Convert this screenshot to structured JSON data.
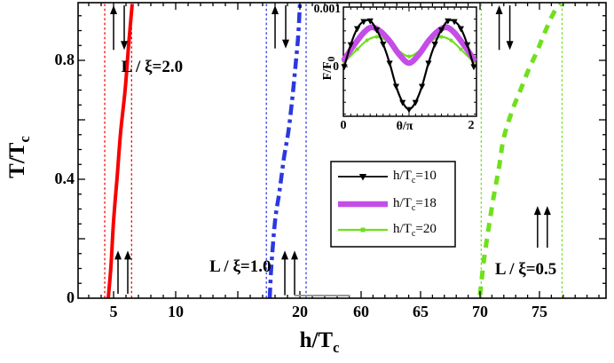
{
  "colors": {
    "red": "#f80000",
    "blue": "#2b38e0",
    "green": "#6fe01c",
    "magenta": "#c44de8",
    "black": "#000000",
    "break_gray": "#9a9a9a"
  },
  "legend": {
    "items": [
      {
        "pre": "h/T",
        "sub": "c",
        "post": "=10",
        "color": "black",
        "marker": "triangle-down"
      },
      {
        "pre": "h/T",
        "sub": "c",
        "post": "=18",
        "color": "magenta",
        "marker": "none"
      },
      {
        "pre": "h/T",
        "sub": "c",
        "post": "=20",
        "color": "green",
        "marker": "dot"
      }
    ]
  },
  "chart_data": [
    {
      "id": "main-phase-diagram",
      "type": "line",
      "xlabel": {
        "pre": "h/T",
        "sub": "c"
      },
      "ylabel": {
        "pre": "T/T",
        "sub": "c"
      },
      "x_axis": {
        "break": true,
        "segments": [
          [
            2.1,
            23.3
          ],
          [
            58.3,
            80.6
          ]
        ],
        "labeled_ticks": [
          5,
          10,
          20,
          60,
          65,
          70,
          75
        ],
        "medium_ticks": [
          5,
          10,
          15,
          20,
          60,
          65,
          70,
          75
        ]
      },
      "y_axis": {
        "range": [
          0,
          0.994
        ],
        "labeled_ticks": [
          0,
          0.4,
          0.8
        ],
        "medium_ticks": [
          0.2,
          0.4,
          0.6,
          0.8
        ],
        "minor_step": 0.05
      },
      "series": [
        {
          "label": "L / ξ=2.0",
          "color": "red",
          "style": "solid",
          "width": 4,
          "points": [
            [
              4.57,
              0.0
            ],
            [
              4.79,
              0.11
            ],
            [
              5.0,
              0.26
            ],
            [
              5.29,
              0.41
            ],
            [
              5.57,
              0.56
            ],
            [
              5.93,
              0.7
            ],
            [
              6.21,
              0.85
            ],
            [
              6.5,
              0.99
            ]
          ]
        },
        {
          "label": "L / ξ=1.0",
          "color": "blue",
          "style": "dashdot",
          "width": 4.5,
          "points": [
            [
              17.57,
              0.0
            ],
            [
              17.71,
              0.11
            ],
            [
              18.0,
              0.26
            ],
            [
              18.36,
              0.36
            ],
            [
              18.71,
              0.47
            ],
            [
              19.07,
              0.56
            ],
            [
              19.36,
              0.66
            ],
            [
              19.64,
              0.78
            ],
            [
              19.86,
              0.88
            ],
            [
              20.0,
              0.99
            ]
          ]
        },
        {
          "label": "L / ξ=0.5",
          "color": "green",
          "style": "dashed",
          "width": 5,
          "points": [
            [
              70.0,
              0.01
            ],
            [
              70.3,
              0.12
            ],
            [
              70.7,
              0.23
            ],
            [
              71.1,
              0.33
            ],
            [
              71.6,
              0.44
            ],
            [
              72.0,
              0.54
            ],
            [
              72.7,
              0.63
            ],
            [
              73.4,
              0.7
            ],
            [
              74.1,
              0.77
            ],
            [
              74.8,
              0.83
            ],
            [
              75.4,
              0.89
            ],
            [
              76.2,
              0.96
            ],
            [
              76.8,
              0.99
            ]
          ]
        }
      ],
      "guide_lines": [
        {
          "color": "red",
          "x": 4.29
        },
        {
          "color": "red",
          "x": 6.45
        },
        {
          "color": "blue",
          "x": 17.3
        },
        {
          "color": "blue",
          "x": 20.5
        },
        {
          "color": "green",
          "x": 70.1
        },
        {
          "color": "green",
          "x": 76.9
        }
      ],
      "region_arrows": [
        {
          "kind": "antiparallel",
          "x": 5.43,
          "t1": 0.985,
          "t2": 0.835
        },
        {
          "kind": "antiparallel",
          "x": 18.43,
          "t1": 0.985,
          "t2": 0.84
        },
        {
          "kind": "antiparallel",
          "x": 72.06,
          "t1": 0.985,
          "t2": 0.835
        },
        {
          "kind": "parallel",
          "x": 5.75,
          "t1": 0.16,
          "t2": 0.015
        },
        {
          "kind": "parallel",
          "x": 19.18,
          "t1": 0.16,
          "t2": 0.01
        },
        {
          "kind": "parallel",
          "x": 75.25,
          "t1": 0.31,
          "t2": 0.17
        }
      ],
      "series_labels": [
        {
          "text": "L / ξ=2.0",
          "x": 8.1,
          "t": 0.77
        },
        {
          "text": "L / ξ=1.0",
          "x": 15.2,
          "t": 0.1
        },
        {
          "text": "L / ξ=0.5",
          "x": 73.85,
          "t": 0.09
        }
      ]
    },
    {
      "id": "inset-free-energy",
      "type": "line",
      "xlabel": "θ/π",
      "ylabel": {
        "pre": "F/F",
        "sub": "0"
      },
      "x_range": [
        0,
        2
      ],
      "x_tick_labels": {
        "left": "0",
        "right": "2"
      },
      "y_tick_labels": {
        "zero": "0",
        "top": "0.001"
      },
      "y_unit": 0.001,
      "series": [
        {
          "label": "h/T_c=10",
          "color": "black",
          "width": 2.2,
          "marker": "triangle-down",
          "points": [
            [
              0,
              0
            ],
            [
              0.1,
              0.37
            ],
            [
              0.2,
              0.64
            ],
            [
              0.3,
              0.76
            ],
            [
              0.4,
              0.77
            ],
            [
              0.5,
              0.62
            ],
            [
              0.6,
              0.38
            ],
            [
              0.7,
              0.06
            ],
            [
              0.8,
              -0.33
            ],
            [
              0.9,
              -0.6
            ],
            [
              1.0,
              -0.72
            ],
            [
              1.1,
              -0.6
            ],
            [
              1.2,
              -0.33
            ],
            [
              1.3,
              0.06
            ],
            [
              1.4,
              0.38
            ],
            [
              1.5,
              0.62
            ],
            [
              1.6,
              0.77
            ],
            [
              1.7,
              0.76
            ],
            [
              1.8,
              0.64
            ],
            [
              1.9,
              0.37
            ],
            [
              2.0,
              0
            ]
          ]
        },
        {
          "label": "h/T_c=18",
          "color": "magenta",
          "width": 6.5,
          "marker": "none",
          "points": [
            [
              0,
              0.12
            ],
            [
              0.15,
              0.36
            ],
            [
              0.3,
              0.57
            ],
            [
              0.42,
              0.66
            ],
            [
              0.55,
              0.6
            ],
            [
              0.7,
              0.43
            ],
            [
              0.85,
              0.2
            ],
            [
              1.0,
              0.06
            ],
            [
              1.15,
              0.2
            ],
            [
              1.3,
              0.43
            ],
            [
              1.45,
              0.6
            ],
            [
              1.58,
              0.66
            ],
            [
              1.7,
              0.57
            ],
            [
              1.85,
              0.36
            ],
            [
              2.0,
              0.12
            ]
          ]
        },
        {
          "label": "h/T_c=20",
          "color": "green",
          "width": 2.2,
          "marker": "dot",
          "points": [
            [
              0,
              0.07
            ],
            [
              0.2,
              0.29
            ],
            [
              0.35,
              0.44
            ],
            [
              0.5,
              0.5
            ],
            [
              0.65,
              0.44
            ],
            [
              0.8,
              0.3
            ],
            [
              1.0,
              0.17
            ],
            [
              1.2,
              0.3
            ],
            [
              1.35,
              0.44
            ],
            [
              1.5,
              0.5
            ],
            [
              1.65,
              0.44
            ],
            [
              1.8,
              0.29
            ],
            [
              2.0,
              0.07
            ]
          ]
        }
      ]
    }
  ]
}
